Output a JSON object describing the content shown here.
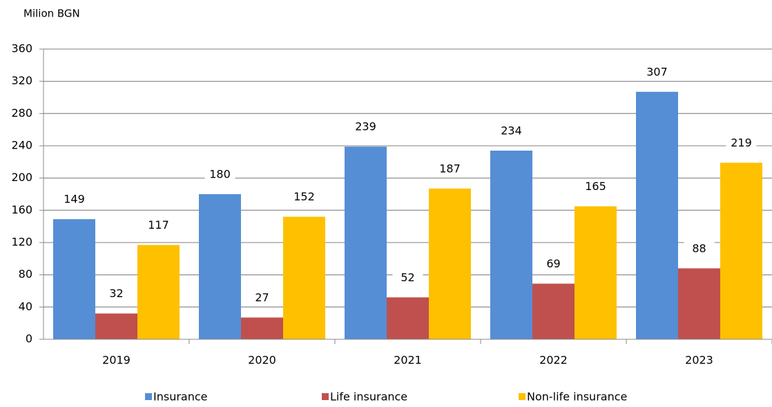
{
  "chart_data": {
    "type": "bar",
    "y_axis_label": "Milion BGN",
    "categories": [
      "2019",
      "2020",
      "2021",
      "2022",
      "2023"
    ],
    "series": [
      {
        "name": "Insurance",
        "color": "#558ed5",
        "values": [
          149,
          180,
          239,
          234,
          307
        ]
      },
      {
        "name": "Life insurance",
        "color": "#c0504d",
        "values": [
          32,
          27,
          52,
          69,
          88
        ]
      },
      {
        "name": "Non-life insurance",
        "color": "#ffc000",
        "values": [
          117,
          152,
          187,
          165,
          219
        ]
      }
    ],
    "ylim": [
      0,
      360
    ],
    "yticks": [
      0,
      40,
      80,
      120,
      160,
      200,
      240,
      280,
      320,
      360
    ],
    "grid": true,
    "legend": "bottom"
  }
}
